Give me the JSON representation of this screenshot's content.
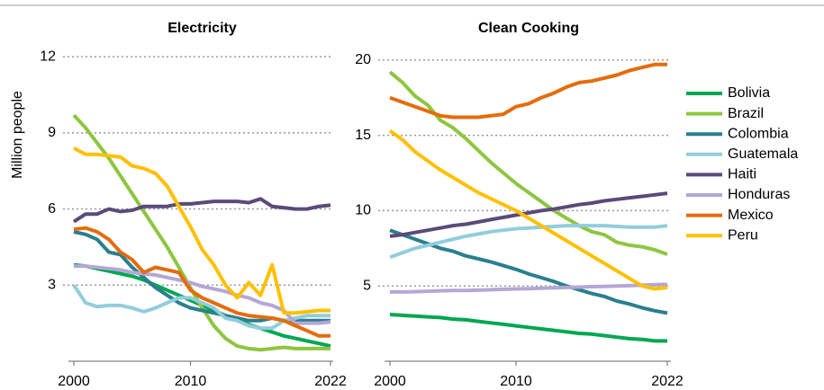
{
  "chart_data": [
    {
      "type": "line",
      "title": "Electricity",
      "ylabel": "Million people",
      "x": [
        2000,
        2001,
        2002,
        2003,
        2004,
        2005,
        2006,
        2007,
        2008,
        2009,
        2010,
        2011,
        2012,
        2013,
        2014,
        2015,
        2016,
        2017,
        2018,
        2019,
        2020,
        2021,
        2022
      ],
      "xlim": [
        2000,
        2022
      ],
      "xticks": [
        2000,
        2010,
        2022
      ],
      "ylim": [
        0,
        12.5
      ],
      "yticks": [
        3,
        6,
        9,
        12
      ],
      "grid": true,
      "series": [
        {
          "name": "Bolivia",
          "color": "#00a651",
          "values": [
            3.8,
            3.75,
            3.65,
            3.55,
            3.45,
            3.35,
            3.2,
            3.0,
            2.8,
            2.6,
            2.4,
            2.2,
            2.0,
            1.8,
            1.6,
            1.45,
            1.3,
            1.15,
            1.0,
            0.9,
            0.8,
            0.7,
            0.6
          ]
        },
        {
          "name": "Brazil",
          "color": "#8dc63f",
          "values": [
            9.7,
            9.2,
            8.6,
            8.0,
            7.3,
            6.6,
            5.9,
            5.2,
            4.5,
            3.7,
            2.9,
            2.1,
            1.4,
            0.9,
            0.6,
            0.5,
            0.45,
            0.5,
            0.55,
            0.5,
            0.5,
            0.5,
            0.5
          ]
        },
        {
          "name": "Colombia",
          "color": "#2a7f8f",
          "values": [
            5.1,
            5.0,
            4.8,
            4.3,
            4.2,
            3.7,
            3.3,
            2.9,
            2.6,
            2.3,
            2.1,
            2.0,
            1.9,
            1.8,
            1.7,
            1.6,
            1.6,
            1.7,
            1.6,
            1.6,
            1.6,
            1.6,
            1.6
          ]
        },
        {
          "name": "Guatemala",
          "color": "#92cddc",
          "values": [
            3.0,
            2.3,
            2.15,
            2.2,
            2.2,
            2.1,
            1.95,
            2.1,
            2.3,
            2.5,
            2.5,
            2.3,
            2.1,
            1.7,
            1.6,
            1.4,
            1.3,
            1.3,
            1.6,
            1.7,
            1.8,
            1.8,
            1.8
          ]
        },
        {
          "name": "Haiti",
          "color": "#5b4a7a",
          "values": [
            5.5,
            5.8,
            5.8,
            6.0,
            5.9,
            5.95,
            6.1,
            6.1,
            6.1,
            6.2,
            6.2,
            6.25,
            6.3,
            6.3,
            6.3,
            6.25,
            6.4,
            6.1,
            6.05,
            6.0,
            6.0,
            6.1,
            6.15
          ]
        },
        {
          "name": "Honduras",
          "color": "#b4a7d6",
          "values": [
            3.75,
            3.75,
            3.7,
            3.65,
            3.6,
            3.5,
            3.45,
            3.4,
            3.3,
            3.2,
            3.1,
            2.95,
            2.85,
            2.75,
            2.6,
            2.5,
            2.3,
            2.2,
            2.0,
            1.5,
            1.5,
            1.5,
            1.55
          ]
        },
        {
          "name": "Mexico",
          "color": "#e46c0a",
          "values": [
            5.2,
            5.25,
            5.1,
            4.8,
            4.3,
            4.0,
            3.5,
            3.7,
            3.6,
            3.5,
            2.8,
            2.5,
            2.3,
            2.1,
            1.9,
            1.8,
            1.75,
            1.7,
            1.6,
            1.4,
            1.2,
            1.0,
            1.0
          ]
        },
        {
          "name": "Peru",
          "color": "#ffc000",
          "values": [
            8.4,
            8.15,
            8.15,
            8.1,
            8.05,
            7.7,
            7.6,
            7.4,
            6.9,
            6.1,
            5.3,
            4.4,
            3.8,
            3.0,
            2.5,
            3.1,
            2.6,
            3.8,
            1.9,
            1.9,
            1.95,
            2.0,
            2.0
          ]
        }
      ]
    },
    {
      "type": "line",
      "title": "Clean Cooking",
      "x": [
        2000,
        2001,
        2002,
        2003,
        2004,
        2005,
        2006,
        2007,
        2008,
        2009,
        2010,
        2011,
        2012,
        2013,
        2014,
        2015,
        2016,
        2017,
        2018,
        2019,
        2020,
        2021,
        2022
      ],
      "xlim": [
        2000,
        2022
      ],
      "xticks": [
        2000,
        2010,
        2022
      ],
      "ylim": [
        0,
        21
      ],
      "yticks": [
        5,
        10,
        15,
        20
      ],
      "grid": true,
      "series": [
        {
          "color": "#00a651",
          "values": [
            3.1,
            3.05,
            3.0,
            2.95,
            2.9,
            2.8,
            2.75,
            2.65,
            2.55,
            2.45,
            2.35,
            2.25,
            2.15,
            2.05,
            1.95,
            1.85,
            1.8,
            1.7,
            1.6,
            1.5,
            1.45,
            1.35,
            1.35
          ]
        },
        {
          "color": "#8dc63f",
          "values": [
            19.2,
            18.5,
            17.6,
            17.0,
            16.0,
            15.5,
            14.8,
            14.0,
            13.2,
            12.5,
            11.8,
            11.2,
            10.6,
            10.0,
            9.5,
            9.0,
            8.6,
            8.4,
            7.9,
            7.7,
            7.6,
            7.4,
            7.1
          ]
        },
        {
          "color": "#2a7f8f",
          "values": [
            8.7,
            8.4,
            8.1,
            7.8,
            7.5,
            7.3,
            7.0,
            6.8,
            6.6,
            6.35,
            6.1,
            5.8,
            5.55,
            5.3,
            5.0,
            4.75,
            4.5,
            4.3,
            4.0,
            3.8,
            3.55,
            3.35,
            3.2
          ]
        },
        {
          "color": "#92cddc",
          "values": [
            6.9,
            7.2,
            7.5,
            7.7,
            7.9,
            8.1,
            8.3,
            8.45,
            8.6,
            8.7,
            8.8,
            8.85,
            8.9,
            8.95,
            9.0,
            9.0,
            9.0,
            9.0,
            8.95,
            8.9,
            8.9,
            8.9,
            9.0
          ]
        },
        {
          "color": "#5b4a7a",
          "values": [
            8.3,
            8.4,
            8.55,
            8.7,
            8.85,
            9.0,
            9.1,
            9.25,
            9.4,
            9.55,
            9.7,
            9.85,
            10.0,
            10.1,
            10.25,
            10.4,
            10.5,
            10.65,
            10.75,
            10.85,
            10.95,
            11.05,
            11.15
          ]
        },
        {
          "color": "#b4a7d6",
          "values": [
            4.6,
            4.6,
            4.62,
            4.65,
            4.68,
            4.7,
            4.7,
            4.72,
            4.75,
            4.78,
            4.8,
            4.82,
            4.85,
            4.88,
            4.9,
            4.92,
            4.95,
            4.97,
            5.0,
            5.02,
            5.05,
            5.08,
            5.1
          ]
        },
        {
          "color": "#e46c0a",
          "values": [
            17.5,
            17.2,
            16.9,
            16.6,
            16.3,
            16.2,
            16.2,
            16.2,
            16.3,
            16.4,
            16.9,
            17.1,
            17.5,
            17.8,
            18.2,
            18.5,
            18.6,
            18.8,
            19.0,
            19.3,
            19.5,
            19.7,
            19.7
          ]
        },
        {
          "color": "#ffc000",
          "values": [
            15.3,
            14.7,
            13.9,
            13.3,
            12.7,
            12.2,
            11.7,
            11.2,
            10.8,
            10.4,
            10.0,
            9.5,
            9.0,
            8.5,
            8.0,
            7.5,
            7.0,
            6.5,
            6.0,
            5.5,
            5.0,
            4.8,
            4.9
          ]
        }
      ]
    }
  ]
}
